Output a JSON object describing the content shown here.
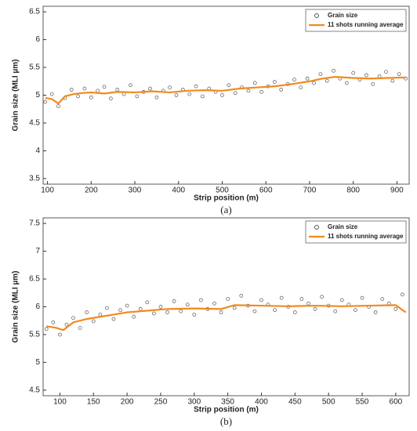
{
  "chart_data": [
    {
      "type": "scatter",
      "caption": "(a)",
      "xlabel": "Strip position (m)",
      "ylabel": "Grain size (MLI µm)",
      "xlim": [
        90,
        928
      ],
      "ylim": [
        3.4,
        6.6
      ],
      "xticks": [
        100,
        200,
        300,
        400,
        500,
        600,
        700,
        800,
        900
      ],
      "yticks": [
        3.5,
        4,
        4.5,
        5,
        5.5,
        6,
        6.5
      ],
      "legend": "upper right",
      "series": [
        {
          "name": "Grain size",
          "type": "scatter",
          "color": "#555555",
          "x": [
            95,
            110,
            125,
            140,
            155,
            170,
            185,
            200,
            215,
            230,
            245,
            260,
            275,
            290,
            305,
            320,
            335,
            350,
            365,
            380,
            395,
            410,
            425,
            440,
            455,
            470,
            485,
            500,
            515,
            530,
            545,
            560,
            575,
            590,
            605,
            620,
            635,
            650,
            665,
            680,
            695,
            710,
            725,
            740,
            755,
            770,
            785,
            800,
            815,
            830,
            845,
            860,
            875,
            890,
            905,
            920
          ],
          "values": [
            4.88,
            5.02,
            4.8,
            4.95,
            5.1,
            4.98,
            5.12,
            4.96,
            5.08,
            5.15,
            4.94,
            5.1,
            5.02,
            5.18,
            4.98,
            5.06,
            5.12,
            4.96,
            5.08,
            5.14,
            5.0,
            5.1,
            5.02,
            5.16,
            4.98,
            5.12,
            5.06,
            5.0,
            5.18,
            5.04,
            5.14,
            5.08,
            5.22,
            5.06,
            5.16,
            5.24,
            5.1,
            5.2,
            5.28,
            5.14,
            5.3,
            5.22,
            5.38,
            5.26,
            5.44,
            5.3,
            5.22,
            5.4,
            5.28,
            5.36,
            5.2,
            5.34,
            5.42,
            5.26,
            5.38,
            5.3
          ]
        },
        {
          "name": "11 shots running average",
          "type": "line",
          "color": "#f28a1e",
          "x": [
            95,
            110,
            125,
            140,
            160,
            180,
            200,
            230,
            260,
            300,
            340,
            380,
            420,
            460,
            500,
            540,
            580,
            620,
            660,
            700,
            730,
            760,
            800,
            840,
            880,
            920
          ],
          "values": [
            4.95,
            4.93,
            4.85,
            4.98,
            5.02,
            5.04,
            5.05,
            5.03,
            5.06,
            5.05,
            5.07,
            5.05,
            5.08,
            5.09,
            5.08,
            5.12,
            5.14,
            5.16,
            5.2,
            5.25,
            5.3,
            5.33,
            5.31,
            5.3,
            5.31,
            5.32
          ]
        }
      ]
    },
    {
      "type": "scatter",
      "caption": "(b)",
      "xlabel": "Strip position (m)",
      "ylabel": "Grain size (MLI µm)",
      "xlim": [
        75,
        620
      ],
      "ylim": [
        4.4,
        7.6
      ],
      "xticks": [
        100,
        150,
        200,
        250,
        300,
        350,
        400,
        450,
        500,
        550,
        600
      ],
      "yticks": [
        4.5,
        5,
        5.5,
        6,
        6.5,
        7,
        7.5
      ],
      "legend": "upper right",
      "series": [
        {
          "name": "Grain size",
          "type": "scatter",
          "color": "#555555",
          "x": [
            80,
            90,
            100,
            110,
            120,
            130,
            140,
            150,
            160,
            170,
            180,
            190,
            200,
            210,
            220,
            230,
            240,
            250,
            260,
            270,
            280,
            290,
            300,
            310,
            320,
            330,
            340,
            350,
            360,
            370,
            380,
            390,
            400,
            410,
            420,
            430,
            440,
            450,
            460,
            470,
            480,
            490,
            500,
            510,
            520,
            530,
            540,
            550,
            560,
            570,
            580,
            590,
            600,
            610
          ],
          "values": [
            5.6,
            5.72,
            5.5,
            5.68,
            5.8,
            5.62,
            5.9,
            5.74,
            5.86,
            5.98,
            5.78,
            5.94,
            6.02,
            5.82,
            5.96,
            6.08,
            5.88,
            6.0,
            5.9,
            6.1,
            5.92,
            6.04,
            5.86,
            6.12,
            5.96,
            6.06,
            5.9,
            6.14,
            5.98,
            6.2,
            6.02,
            5.92,
            6.12,
            6.04,
            5.94,
            6.16,
            6.0,
            5.9,
            6.14,
            6.06,
            5.96,
            6.18,
            6.02,
            5.92,
            6.12,
            6.04,
            5.94,
            6.16,
            6.0,
            5.9,
            6.14,
            6.06,
            5.96,
            6.22
          ]
        },
        {
          "name": "11 shots running average",
          "type": "line",
          "color": "#f28a1e",
          "x": [
            80,
            95,
            105,
            120,
            140,
            160,
            180,
            200,
            230,
            260,
            300,
            340,
            360,
            400,
            440,
            480,
            520,
            560,
            600,
            615
          ],
          "values": [
            5.65,
            5.62,
            5.58,
            5.72,
            5.78,
            5.82,
            5.86,
            5.9,
            5.93,
            5.96,
            5.97,
            5.96,
            6.03,
            6.02,
            6.01,
            6.02,
            6.01,
            6.02,
            6.03,
            5.9
          ]
        }
      ]
    }
  ]
}
